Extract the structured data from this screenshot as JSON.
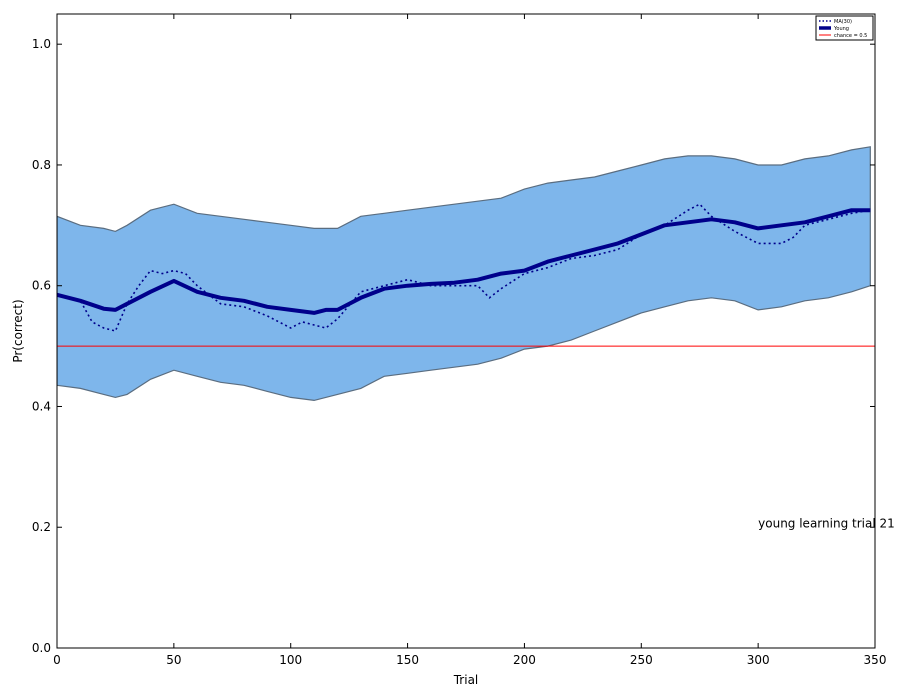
{
  "chart_data": {
    "type": "line",
    "title": "",
    "xlabel": "Trial",
    "ylabel": "Pr(correct)",
    "xlim": [
      0,
      350
    ],
    "ylim": [
      0.0,
      1.05
    ],
    "x_ticks": [
      0,
      50,
      100,
      150,
      200,
      250,
      300,
      350
    ],
    "y_ticks": [
      0.0,
      0.2,
      0.4,
      0.6,
      0.8,
      1.0
    ],
    "x_tick_labels": [
      "0",
      "50",
      "100",
      "150",
      "200",
      "250",
      "300",
      "350"
    ],
    "y_tick_labels": [
      "0.0",
      "0.2",
      "0.4",
      "0.6",
      "0.8",
      "1.0"
    ],
    "grid": false,
    "legend_position": "top-right",
    "legend": [
      {
        "label": "MA(30)",
        "style": "dotted",
        "color": "#00008b"
      },
      {
        "label": "Young",
        "style": "solid-thick",
        "color": "#00008b"
      },
      {
        "label": "chance = 0.5",
        "style": "solid",
        "color": "#ff0000"
      }
    ],
    "annotation": {
      "text": "young learning trial  21",
      "x": 300,
      "y": 0.2
    },
    "chance_level": 0.5,
    "series": [
      {
        "name": "Young",
        "x": [
          0,
          10,
          20,
          25,
          30,
          40,
          50,
          60,
          70,
          80,
          90,
          100,
          110,
          115,
          120,
          130,
          140,
          150,
          160,
          170,
          180,
          190,
          200,
          210,
          220,
          230,
          240,
          250,
          260,
          270,
          280,
          290,
          300,
          310,
          320,
          330,
          340,
          348
        ],
        "values": [
          0.585,
          0.575,
          0.562,
          0.56,
          0.57,
          0.59,
          0.608,
          0.59,
          0.58,
          0.575,
          0.565,
          0.56,
          0.555,
          0.56,
          0.56,
          0.58,
          0.595,
          0.6,
          0.603,
          0.605,
          0.61,
          0.62,
          0.625,
          0.64,
          0.65,
          0.66,
          0.67,
          0.685,
          0.7,
          0.705,
          0.71,
          0.705,
          0.695,
          0.7,
          0.705,
          0.715,
          0.725,
          0.725
        ]
      },
      {
        "name": "MA(30)",
        "x": [
          0,
          10,
          15,
          20,
          25,
          30,
          35,
          40,
          45,
          50,
          55,
          60,
          70,
          80,
          90,
          100,
          105,
          110,
          115,
          120,
          130,
          140,
          150,
          160,
          170,
          180,
          185,
          190,
          200,
          210,
          220,
          230,
          240,
          250,
          260,
          270,
          275,
          280,
          290,
          300,
          310,
          315,
          320,
          330,
          340,
          348
        ],
        "values": [
          0.585,
          0.575,
          0.54,
          0.53,
          0.525,
          0.57,
          0.6,
          0.625,
          0.62,
          0.625,
          0.62,
          0.6,
          0.57,
          0.565,
          0.55,
          0.53,
          0.54,
          0.535,
          0.53,
          0.545,
          0.59,
          0.6,
          0.61,
          0.6,
          0.6,
          0.6,
          0.58,
          0.595,
          0.62,
          0.63,
          0.645,
          0.65,
          0.66,
          0.685,
          0.7,
          0.725,
          0.735,
          0.715,
          0.69,
          0.67,
          0.67,
          0.68,
          0.7,
          0.71,
          0.72,
          0.725
        ]
      }
    ],
    "band": {
      "x": [
        0,
        10,
        20,
        25,
        30,
        40,
        50,
        60,
        70,
        80,
        90,
        100,
        110,
        120,
        130,
        140,
        150,
        160,
        170,
        180,
        190,
        200,
        210,
        220,
        230,
        240,
        250,
        260,
        270,
        280,
        290,
        300,
        310,
        320,
        330,
        340,
        348
      ],
      "upper": [
        0.715,
        0.7,
        0.695,
        0.69,
        0.7,
        0.725,
        0.735,
        0.72,
        0.715,
        0.71,
        0.705,
        0.7,
        0.695,
        0.695,
        0.715,
        0.72,
        0.725,
        0.73,
        0.735,
        0.74,
        0.745,
        0.76,
        0.77,
        0.775,
        0.78,
        0.79,
        0.8,
        0.81,
        0.815,
        0.815,
        0.81,
        0.8,
        0.8,
        0.81,
        0.815,
        0.825,
        0.83
      ],
      "lower": [
        0.435,
        0.43,
        0.42,
        0.415,
        0.42,
        0.445,
        0.46,
        0.45,
        0.44,
        0.435,
        0.425,
        0.415,
        0.41,
        0.42,
        0.43,
        0.45,
        0.455,
        0.46,
        0.465,
        0.47,
        0.48,
        0.495,
        0.5,
        0.51,
        0.525,
        0.54,
        0.555,
        0.565,
        0.575,
        0.58,
        0.575,
        0.56,
        0.565,
        0.575,
        0.58,
        0.59,
        0.6
      ]
    },
    "colors": {
      "band_fill": "#7eb6eb",
      "band_edge": "#5a6d80",
      "young_line": "#00008b",
      "ma_line": "#00008b",
      "chance_line": "#ff0000"
    }
  }
}
